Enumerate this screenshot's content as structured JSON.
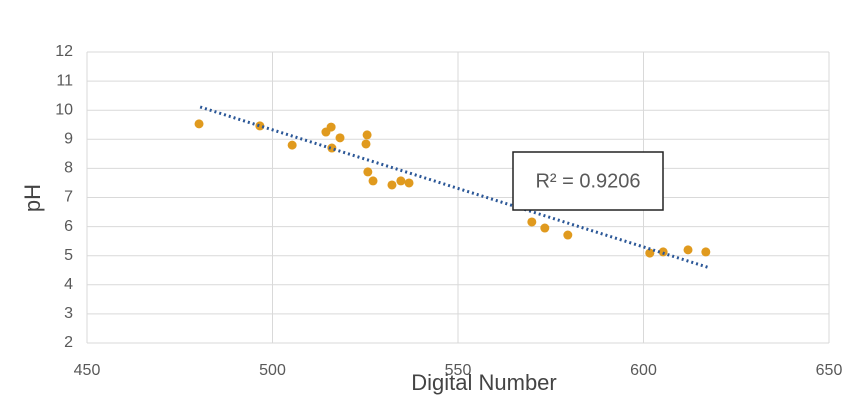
{
  "chart_data": {
    "type": "scatter",
    "x_label": "Digital Number",
    "y_label": "pH",
    "series": [
      {
        "name": "pH",
        "color": "#e09a1e",
        "x": [
          480.2,
          496.6,
          505.3,
          514.4,
          515.8,
          516.0,
          518.2,
          525.5,
          525.2,
          525.7,
          527.1,
          532.2,
          534.6,
          536.8,
          569.9,
          573.4,
          579.6,
          601.7,
          605.3,
          612.0,
          616.8
        ],
        "values": [
          9.53,
          9.46,
          8.8,
          9.25,
          9.42,
          8.7,
          9.05,
          9.15,
          8.84,
          7.88,
          7.57,
          7.43,
          7.57,
          7.5,
          6.16,
          5.95,
          5.71,
          5.09,
          5.13,
          5.2,
          5.13
        ]
      }
    ],
    "trendline": {
      "color": "#2b5797",
      "x": [
        480.5,
        617.9
      ],
      "values": [
        10.11,
        4.58
      ]
    },
    "annotation": "R² = 0.9206",
    "xlim": [
      450,
      650
    ],
    "xticks": [
      450,
      500,
      550,
      600,
      650
    ],
    "ylim": [
      2,
      12
    ],
    "yticks": [
      2,
      3,
      4,
      5,
      6,
      7,
      8,
      9,
      10,
      11,
      12
    ],
    "grid": true
  }
}
